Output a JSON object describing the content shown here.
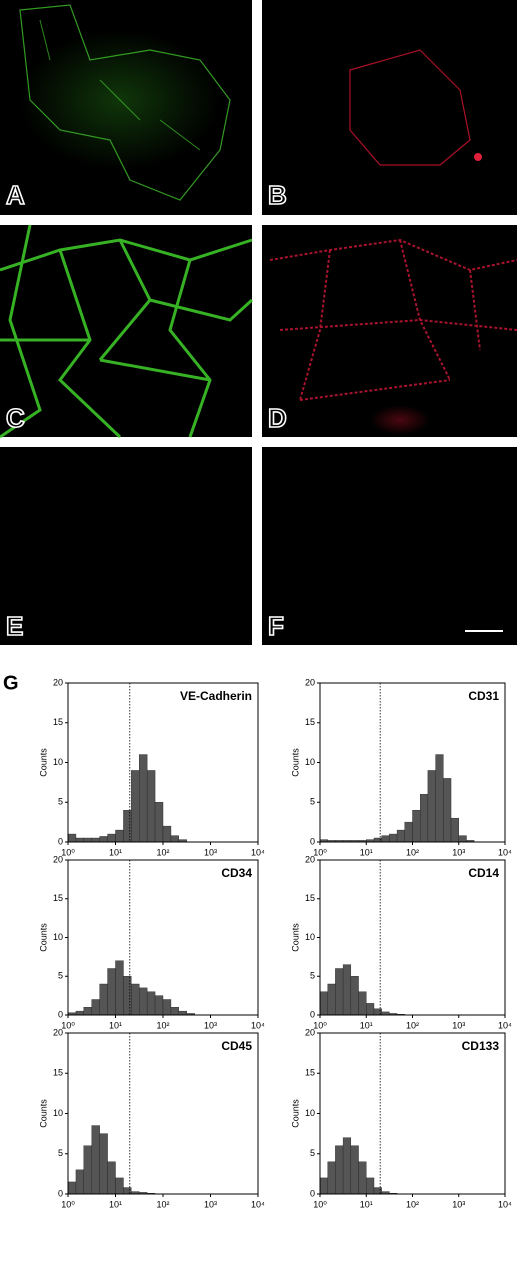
{
  "image_panels": [
    "A",
    "B",
    "C",
    "D",
    "E",
    "F"
  ],
  "figure_label": "G",
  "chart_data": [
    {
      "type": "histogram",
      "title": "VE-Cadherin",
      "ylabel": "Counts",
      "log_x": true,
      "color": "#555555",
      "gate": 20,
      "bins": [
        1,
        1.47,
        2.15,
        3.16,
        4.64,
        6.81,
        10,
        14.7,
        21.5,
        31.6,
        46.4,
        68.1,
        100,
        147,
        215,
        316,
        464,
        681,
        1000,
        1470,
        2150,
        3160,
        4640,
        6810,
        10000
      ],
      "counts": [
        1,
        0.5,
        0.5,
        0.5,
        0.7,
        1,
        1.5,
        4,
        9,
        11,
        9,
        5,
        2,
        0.8,
        0.3,
        0,
        0,
        0,
        0,
        0,
        0,
        0,
        0,
        0
      ],
      "xlim": [
        1,
        10000
      ],
      "xticks": [
        {
          "value": 1,
          "label": "10⁰"
        },
        {
          "value": 10,
          "label": "10¹"
        },
        {
          "value": 100,
          "label": "10²"
        },
        {
          "value": 1000,
          "label": "10³"
        },
        {
          "value": 10000,
          "label": "10⁴"
        }
      ],
      "ylim": [
        0,
        20
      ],
      "yticks": [
        0,
        5,
        10,
        15,
        20
      ]
    },
    {
      "type": "histogram",
      "title": "CD31",
      "ylabel": "Counts",
      "log_x": true,
      "color": "#555555",
      "gate": 20,
      "bins": [
        1,
        1.47,
        2.15,
        3.16,
        4.64,
        6.81,
        10,
        14.7,
        21.5,
        31.6,
        46.4,
        68.1,
        100,
        147,
        215,
        316,
        464,
        681,
        1000,
        1470,
        2150,
        3160,
        4640,
        6810,
        10000
      ],
      "counts": [
        0.3,
        0.2,
        0.2,
        0.2,
        0.2,
        0.2,
        0.3,
        0.5,
        0.8,
        1,
        1.5,
        2.5,
        4,
        6,
        9,
        11,
        8,
        3,
        0.8,
        0.2,
        0,
        0,
        0,
        0
      ],
      "xlim": [
        1,
        10000
      ],
      "xticks": [
        {
          "value": 1,
          "label": "10⁰"
        },
        {
          "value": 10,
          "label": "10¹"
        },
        {
          "value": 100,
          "label": "10²"
        },
        {
          "value": 1000,
          "label": "10³"
        },
        {
          "value": 10000,
          "label": "10⁴"
        }
      ],
      "ylim": [
        0,
        20
      ],
      "yticks": [
        0,
        5,
        10,
        15,
        20
      ]
    },
    {
      "type": "histogram",
      "title": "CD34",
      "ylabel": "Counts",
      "log_x": true,
      "color": "#555555",
      "gate": 20,
      "bins": [
        1,
        1.47,
        2.15,
        3.16,
        4.64,
        6.81,
        10,
        14.7,
        21.5,
        31.6,
        46.4,
        68.1,
        100,
        147,
        215,
        316,
        464,
        681,
        1000,
        1470,
        2150,
        3160,
        4640,
        6810,
        10000
      ],
      "counts": [
        0.3,
        0.5,
        1,
        2,
        4,
        6,
        7,
        5,
        4,
        3.5,
        3,
        2.5,
        2,
        1,
        0.5,
        0.2,
        0,
        0,
        0,
        0,
        0,
        0,
        0,
        0
      ],
      "xlim": [
        1,
        10000
      ],
      "xticks": [
        {
          "value": 1,
          "label": "10⁰"
        },
        {
          "value": 10,
          "label": "10¹"
        },
        {
          "value": 100,
          "label": "10²"
        },
        {
          "value": 1000,
          "label": "10³"
        },
        {
          "value": 10000,
          "label": "10⁴"
        }
      ],
      "ylim": [
        0,
        20
      ],
      "yticks": [
        0,
        5,
        10,
        15,
        20
      ]
    },
    {
      "type": "histogram",
      "title": "CD14",
      "ylabel": "Counts",
      "log_x": true,
      "color": "#555555",
      "gate": 20,
      "bins": [
        1,
        1.47,
        2.15,
        3.16,
        4.64,
        6.81,
        10,
        14.7,
        21.5,
        31.6,
        46.4,
        68.1,
        100,
        147,
        215,
        316,
        464,
        681,
        1000,
        1470,
        2150,
        3160,
        4640,
        6810,
        10000
      ],
      "counts": [
        3,
        4,
        6,
        6.5,
        5,
        3,
        1.5,
        0.8,
        0.4,
        0.2,
        0.1,
        0,
        0,
        0,
        0,
        0,
        0,
        0,
        0,
        0,
        0,
        0,
        0,
        0
      ],
      "xlim": [
        1,
        10000
      ],
      "xticks": [
        {
          "value": 1,
          "label": "10⁰"
        },
        {
          "value": 10,
          "label": "10¹"
        },
        {
          "value": 100,
          "label": "10²"
        },
        {
          "value": 1000,
          "label": "10³"
        },
        {
          "value": 10000,
          "label": "10⁴"
        }
      ],
      "ylim": [
        0,
        20
      ],
      "yticks": [
        0,
        5,
        10,
        15,
        20
      ]
    },
    {
      "type": "histogram",
      "title": "CD45",
      "ylabel": "Counts",
      "log_x": true,
      "color": "#555555",
      "gate": 20,
      "bins": [
        1,
        1.47,
        2.15,
        3.16,
        4.64,
        6.81,
        10,
        14.7,
        21.5,
        31.6,
        46.4,
        68.1,
        100,
        147,
        215,
        316,
        464,
        681,
        1000,
        1470,
        2150,
        3160,
        4640,
        6810,
        10000
      ],
      "counts": [
        1.5,
        3,
        6,
        8.5,
        7.5,
        4,
        2,
        0.8,
        0.3,
        0.2,
        0.1,
        0,
        0,
        0,
        0,
        0,
        0,
        0,
        0,
        0,
        0,
        0,
        0,
        0
      ],
      "xlim": [
        1,
        10000
      ],
      "xticks": [
        {
          "value": 1,
          "label": "10⁰"
        },
        {
          "value": 10,
          "label": "10¹"
        },
        {
          "value": 100,
          "label": "10²"
        },
        {
          "value": 1000,
          "label": "10³"
        },
        {
          "value": 10000,
          "label": "10⁴"
        }
      ],
      "ylim": [
        0,
        20
      ],
      "yticks": [
        0,
        5,
        10,
        15,
        20
      ]
    },
    {
      "type": "histogram",
      "title": "CD133",
      "ylabel": "Counts",
      "log_x": true,
      "color": "#555555",
      "gate": 20,
      "bins": [
        1,
        1.47,
        2.15,
        3.16,
        4.64,
        6.81,
        10,
        14.7,
        21.5,
        31.6,
        46.4,
        68.1,
        100,
        147,
        215,
        316,
        464,
        681,
        1000,
        1470,
        2150,
        3160,
        4640,
        6810,
        10000
      ],
      "counts": [
        2,
        4,
        6,
        7,
        6,
        4,
        2,
        0.8,
        0.3,
        0.1,
        0,
        0,
        0,
        0,
        0,
        0,
        0,
        0,
        0,
        0,
        0,
        0,
        0,
        0
      ],
      "xlim": [
        1,
        10000
      ],
      "xticks": [
        {
          "value": 1,
          "label": "10⁰"
        },
        {
          "value": 10,
          "label": "10¹"
        },
        {
          "value": 100,
          "label": "10²"
        },
        {
          "value": 1000,
          "label": "10³"
        },
        {
          "value": 10000,
          "label": "10⁴"
        }
      ],
      "ylim": [
        0,
        20
      ],
      "yticks": [
        0,
        5,
        10,
        15,
        20
      ]
    }
  ]
}
